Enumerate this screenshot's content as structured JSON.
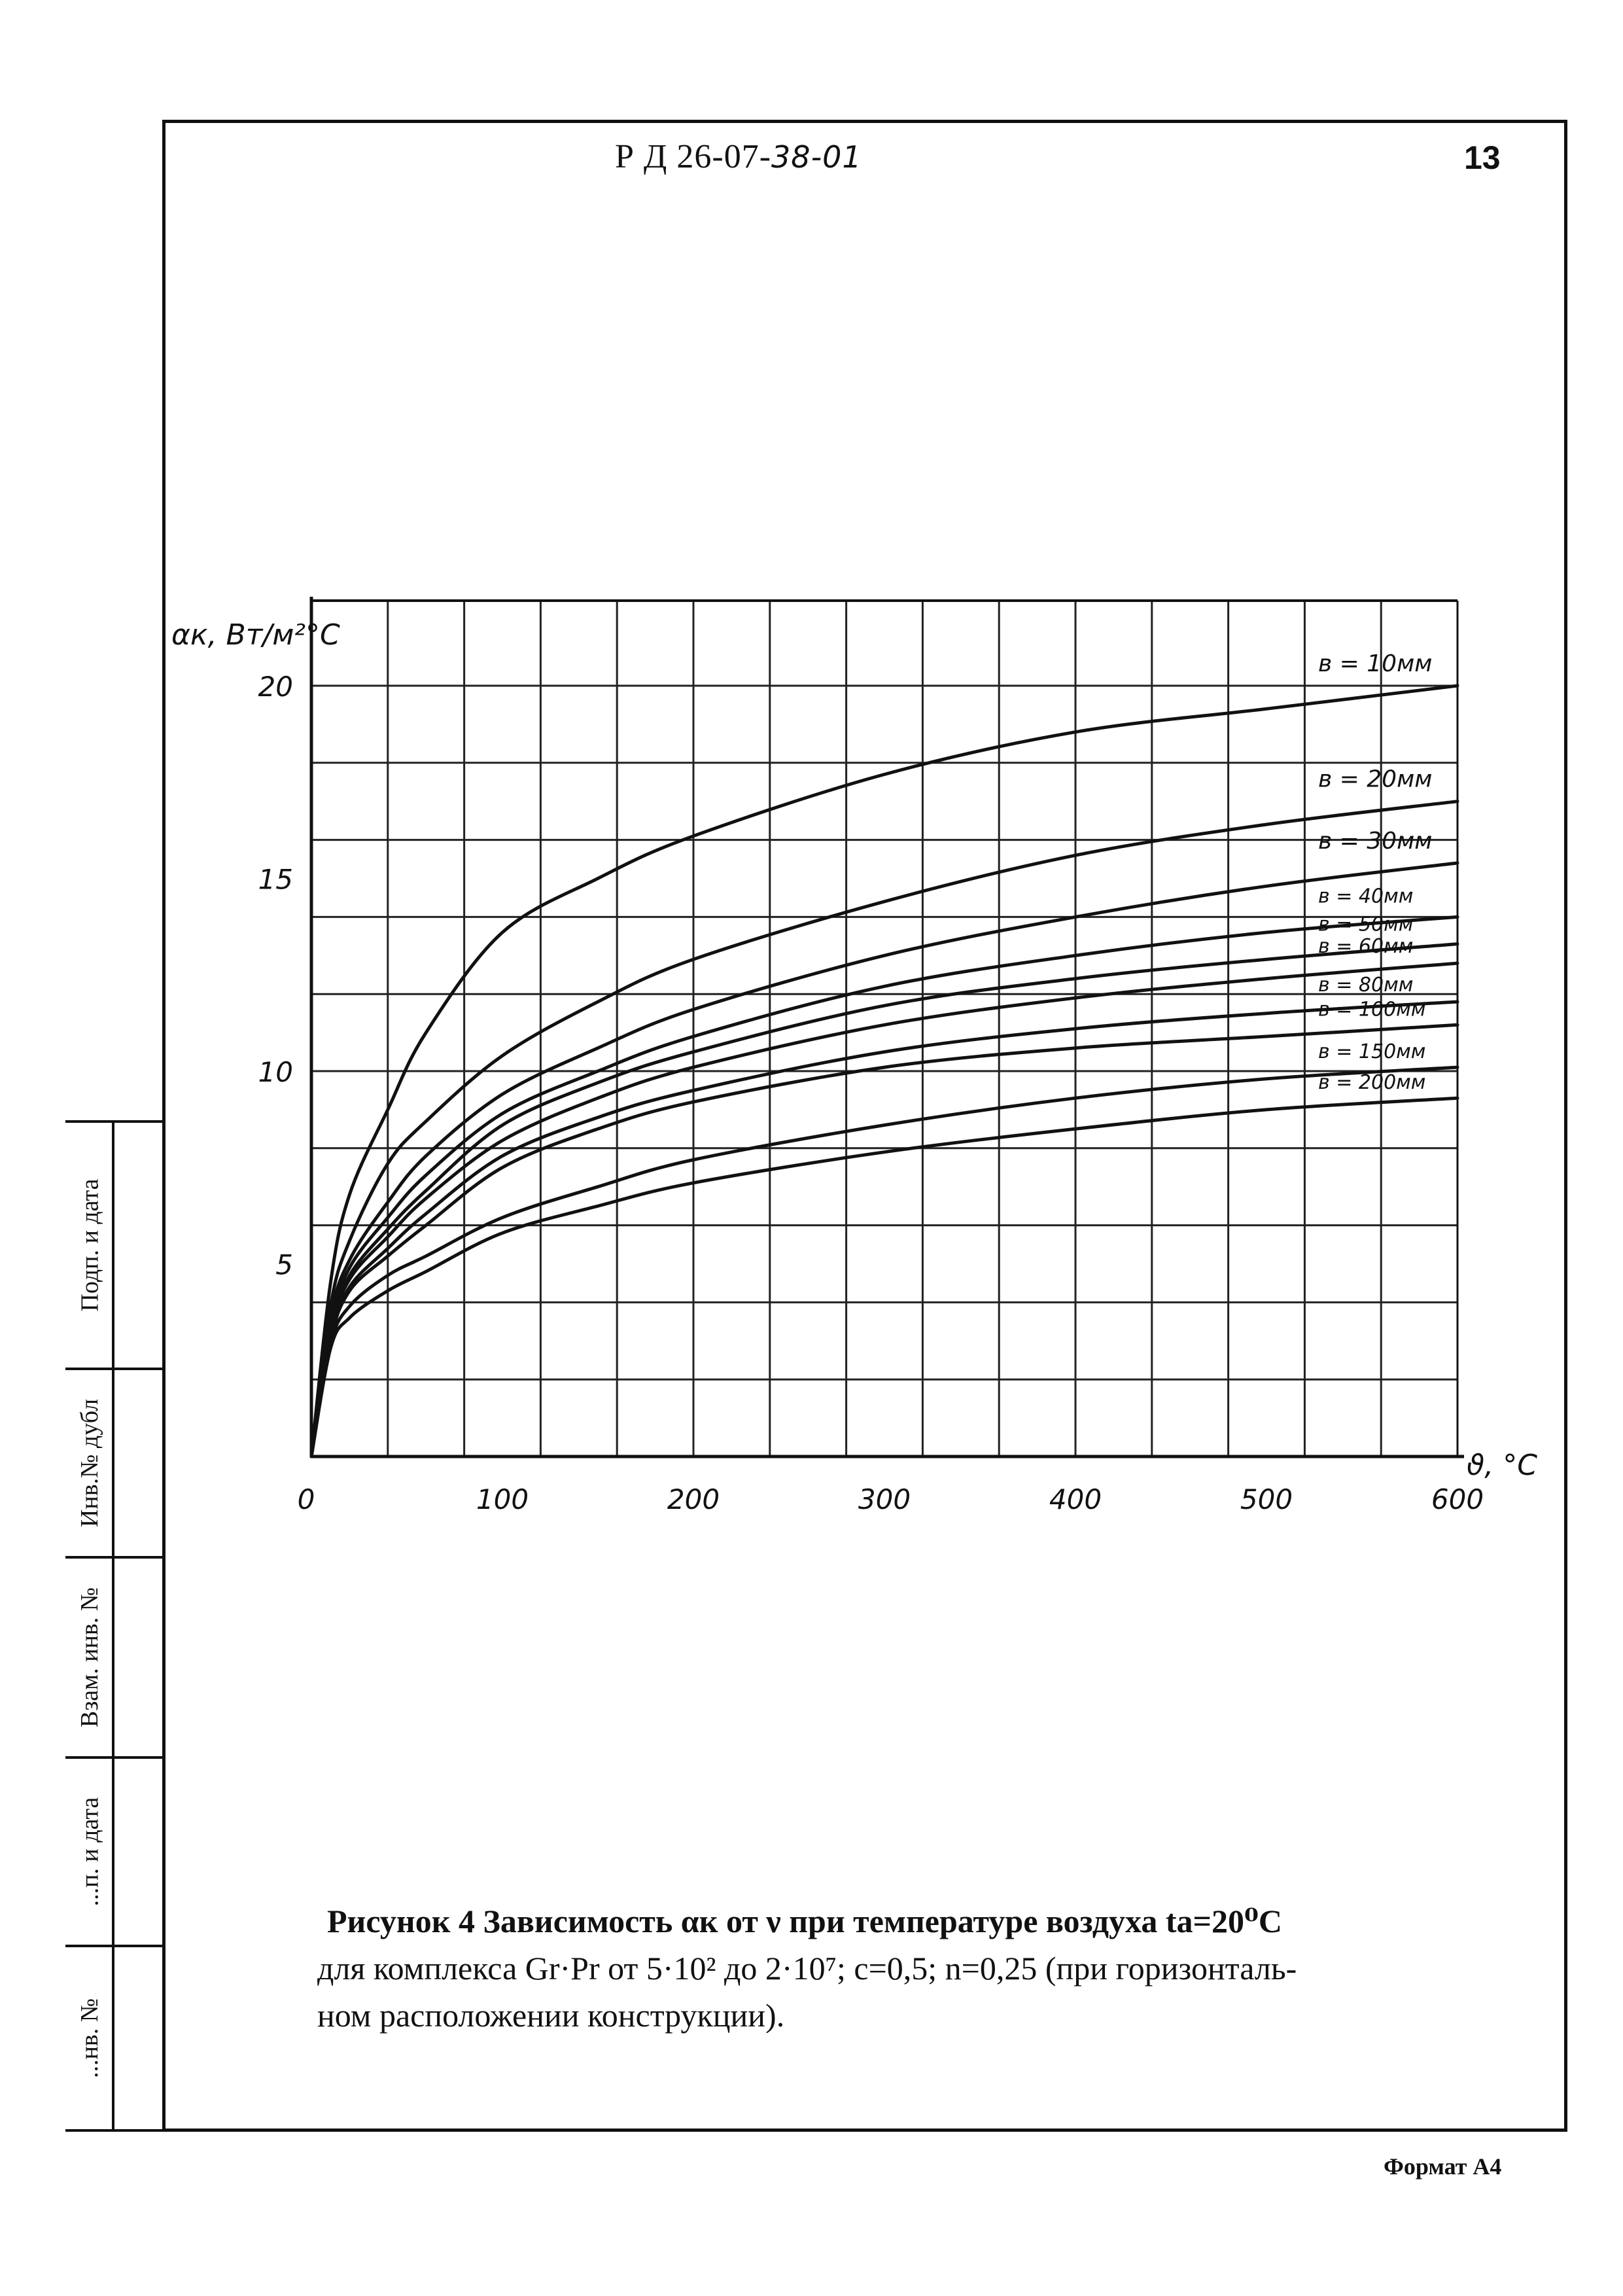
{
  "header": {
    "doc_code_prefix": "Р Д 26-07-",
    "doc_code_number": "38-01",
    "page_number": "13"
  },
  "side_stamp": {
    "labels": [
      "Подп. и дата",
      "Инв.№ дубл",
      "Взам. инв. №",
      "...п. и дата",
      "...нв. №"
    ]
  },
  "chart_data": {
    "type": "line",
    "ylabel": "αк, Вт/м²°С",
    "xlabel": "ϑ, °С",
    "xlim": [
      0,
      600
    ],
    "ylim": [
      0,
      22
    ],
    "x_ticks": [
      0,
      100,
      200,
      300,
      400,
      500,
      600
    ],
    "y_ticks": [
      5,
      10,
      15,
      20
    ],
    "grid": true,
    "x": [
      0,
      10,
      20,
      40,
      60,
      100,
      150,
      200,
      300,
      400,
      500,
      600
    ],
    "series": [
      {
        "name": "в = 10мм",
        "values": [
          0,
          4.5,
          6.8,
          9.0,
          11.0,
          13.6,
          15.0,
          16.1,
          17.7,
          18.8,
          19.4,
          20.0
        ]
      },
      {
        "name": "в = 20мм",
        "values": [
          0,
          3.9,
          5.6,
          7.6,
          8.7,
          10.4,
          11.8,
          12.9,
          14.4,
          15.6,
          16.4,
          17.0
        ]
      },
      {
        "name": "в = 30мм",
        "values": [
          0,
          3.6,
          5.1,
          6.6,
          7.8,
          9.4,
          10.6,
          11.6,
          13.0,
          14.0,
          14.8,
          15.4
        ]
      },
      {
        "name": "в = 40мм",
        "values": [
          0,
          3.4,
          4.9,
          6.2,
          7.3,
          8.9,
          10.0,
          10.9,
          12.2,
          13.0,
          13.6,
          14.0
        ]
      },
      {
        "name": "в = 50мм",
        "values": [
          0,
          3.3,
          4.7,
          5.9,
          6.9,
          8.6,
          9.7,
          10.5,
          11.7,
          12.4,
          12.9,
          13.3
        ]
      },
      {
        "name": "в = 60мм",
        "values": [
          0,
          3.2,
          4.6,
          5.7,
          6.7,
          8.2,
          9.3,
          10.1,
          11.2,
          11.9,
          12.4,
          12.8
        ]
      },
      {
        "name": "в = 80мм",
        "values": [
          0,
          3.1,
          4.4,
          5.4,
          6.3,
          7.8,
          8.8,
          9.5,
          10.5,
          11.1,
          11.5,
          11.8
        ]
      },
      {
        "name": "в = 100мм",
        "values": [
          0,
          3.0,
          4.3,
          5.2,
          6.0,
          7.5,
          8.5,
          9.2,
          10.1,
          10.6,
          10.9,
          11.2
        ]
      },
      {
        "name": "в = 150мм",
        "values": [
          0,
          2.9,
          3.9,
          4.7,
          5.2,
          6.2,
          7.0,
          7.7,
          8.6,
          9.3,
          9.8,
          10.1
        ]
      },
      {
        "name": "в = 200мм",
        "values": [
          0,
          2.8,
          3.6,
          4.3,
          4.8,
          5.8,
          6.5,
          7.1,
          7.9,
          8.5,
          9.0,
          9.3
        ]
      }
    ]
  },
  "caption": {
    "line1": "Рисунок 4  Зависимость αк от ν при температуре воздуха tа=20⁰С",
    "line2": "для комплекса  Gr·Pr от 5·10² до 2·10⁷; с=0,5; n=0,25 (при горизонталь-",
    "line3": "ном расположении конструкции)."
  },
  "footer": {
    "format": "Формат А4"
  }
}
